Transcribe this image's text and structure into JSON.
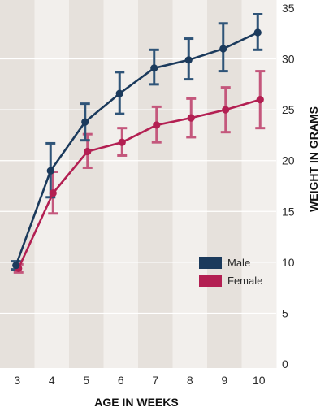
{
  "chart_data": {
    "type": "line",
    "xlabel": "AGE IN WEEKS",
    "ylabel": "WEIGHT IN GRAMS",
    "x": [
      3,
      4,
      5,
      6,
      7,
      8,
      9,
      10
    ],
    "ylim": [
      0,
      35
    ],
    "yticks": [
      0,
      5,
      10,
      15,
      20,
      25,
      30,
      35
    ],
    "error_bars": true,
    "grid": "horizontal",
    "legend_position": "right-middle",
    "series": [
      {
        "name": "Male",
        "color": "#1b3a5c",
        "values": [
          9.7,
          19.0,
          23.8,
          26.6,
          29.1,
          29.9,
          31.0,
          32.6
        ],
        "err_low": [
          9.3,
          16.4,
          22.0,
          24.6,
          27.5,
          28.0,
          28.8,
          30.9
        ],
        "err_high": [
          10.1,
          21.7,
          25.6,
          28.7,
          30.9,
          32.0,
          33.5,
          34.4
        ]
      },
      {
        "name": "Female",
        "color": "#b31f52",
        "values": [
          9.4,
          16.8,
          20.9,
          21.8,
          23.5,
          24.2,
          25.0,
          26.0
        ],
        "err_low": [
          9.0,
          14.8,
          19.3,
          20.5,
          21.8,
          22.3,
          22.8,
          23.2
        ],
        "err_high": [
          9.8,
          18.9,
          22.6,
          23.2,
          25.3,
          26.1,
          27.2,
          28.8
        ]
      }
    ]
  }
}
